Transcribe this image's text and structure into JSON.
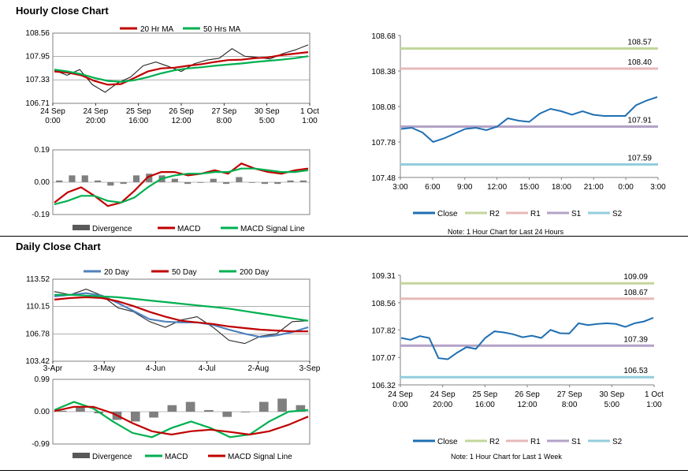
{
  "hourly": {
    "title": "Hourly Close Chart",
    "price": {
      "type": "line",
      "ylim": [
        106.71,
        108.56
      ],
      "yticks": [
        "108.56",
        "107.95",
        "107.33",
        "106.71"
      ],
      "ytick_vals": [
        108.56,
        107.95,
        107.33,
        106.71
      ],
      "xticks": [
        [
          "24 Sep",
          "0:00"
        ],
        [
          "24 Sep",
          "20:00"
        ],
        [
          "25 Sep",
          "16:00"
        ],
        [
          "26 Sep",
          "12:00"
        ],
        [
          "27 Sep",
          "8:00"
        ],
        [
          "30 Sep",
          "5:00"
        ],
        [
          "1 Oct",
          "1:00"
        ]
      ],
      "legend": [
        {
          "name": "20 Hr MA",
          "color": "#c00000"
        },
        {
          "name": "50 Hrs MA",
          "color": "#00b050"
        }
      ],
      "ma20": [
        107.55,
        107.52,
        107.45,
        107.3,
        107.2,
        107.22,
        107.38,
        107.55,
        107.63,
        107.65,
        107.7,
        107.74,
        107.8,
        107.85,
        107.86,
        107.9,
        107.92,
        107.98,
        108.02,
        108.06
      ],
      "ma50": [
        107.6,
        107.55,
        107.48,
        107.38,
        107.3,
        107.28,
        107.32,
        107.4,
        107.5,
        107.58,
        107.63,
        107.66,
        107.7,
        107.73,
        107.76,
        107.8,
        107.83,
        107.86,
        107.9,
        107.95
      ],
      "close": [
        107.58,
        107.45,
        107.6,
        107.2,
        107.0,
        107.25,
        107.4,
        107.7,
        107.8,
        107.68,
        107.55,
        107.75,
        107.85,
        107.9,
        108.15,
        107.95,
        107.92,
        107.88,
        108.02,
        108.12,
        108.25
      ]
    },
    "macd": {
      "ylim": [
        -0.19,
        0.19
      ],
      "yticks": [
        "0.19",
        "0.00",
        "-0.19"
      ],
      "ytick_vals": [
        0.19,
        0.0,
        -0.19
      ],
      "legend": [
        {
          "name": "Divergence",
          "color": "#595959"
        },
        {
          "name": "MACD",
          "color": "#c00000"
        },
        {
          "name": "MACD Signal Line",
          "color": "#00b050"
        }
      ],
      "macd": [
        -0.12,
        -0.06,
        -0.03,
        -0.08,
        -0.14,
        -0.12,
        -0.05,
        0.03,
        0.06,
        0.06,
        0.04,
        0.05,
        0.07,
        0.05,
        0.11,
        0.08,
        0.06,
        0.05,
        0.07,
        0.08
      ],
      "signal": [
        -0.13,
        -0.11,
        -0.08,
        -0.08,
        -0.11,
        -0.12,
        -0.09,
        -0.03,
        0.02,
        0.04,
        0.05,
        0.05,
        0.06,
        0.06,
        0.08,
        0.08,
        0.07,
        0.06,
        0.06,
        0.07
      ],
      "divergence": [
        0.01,
        0.04,
        0.04,
        0.01,
        -0.02,
        -0.01,
        0.04,
        0.05,
        0.04,
        0.02,
        -0.01,
        0.0,
        0.02,
        -0.01,
        0.03,
        0.0,
        -0.01,
        -0.01,
        0.01,
        0.01
      ]
    },
    "pivot": {
      "ylim": [
        107.48,
        108.68
      ],
      "yticks": [
        "108.68",
        "108.38",
        "108.08",
        "107.78",
        "107.48"
      ],
      "ytick_vals": [
        108.68,
        108.38,
        108.08,
        107.78,
        107.48
      ],
      "xticks": [
        "3:00",
        "6:00",
        "9:00",
        "12:00",
        "15:00",
        "18:00",
        "21:00",
        "0:00",
        "3:00"
      ],
      "close": [
        107.89,
        107.9,
        107.86,
        107.78,
        107.81,
        107.85,
        107.89,
        107.9,
        107.88,
        107.91,
        107.98,
        107.96,
        107.95,
        108.02,
        108.06,
        108.04,
        108.01,
        108.04,
        108.01,
        108.0,
        108.0,
        108.0,
        108.09,
        108.13,
        108.16
      ],
      "levels": [
        {
          "name": "R2",
          "value": 108.57,
          "label": "108.57",
          "color": "#c3d69b"
        },
        {
          "name": "R1",
          "value": 108.4,
          "label": "108.40",
          "color": "#e6b9b8"
        },
        {
          "name": "S1",
          "value": 107.91,
          "label": "107.91",
          "color": "#b3a2c7"
        },
        {
          "name": "S2",
          "value": 107.59,
          "label": "107.59",
          "color": "#93cddd"
        }
      ],
      "legend_close": "Close",
      "close_color": "#1f6fb2",
      "note": "Note: 1 Hour Chart for Last 24 Hours"
    }
  },
  "daily": {
    "title": "Daily Close Chart",
    "price": {
      "type": "line",
      "ylim": [
        103.42,
        113.52
      ],
      "yticks": [
        "113.52",
        "110.15",
        "106.78",
        "103.42"
      ],
      "ytick_vals": [
        113.52,
        110.15,
        106.78,
        103.42
      ],
      "xticks": [
        "3-Apr",
        "3-May",
        "4-Jun",
        "4-Jul",
        "2-Aug",
        "3-Sep"
      ],
      "legend": [
        {
          "name": "20 Day",
          "color": "#4f81bd"
        },
        {
          "name": "50 Day",
          "color": "#c00000"
        },
        {
          "name": "200 Day",
          "color": "#00b050"
        }
      ],
      "ma20": [
        111.4,
        111.6,
        111.8,
        111.5,
        110.6,
        109.6,
        108.6,
        108.3,
        108.2,
        108.2,
        107.9,
        107.3,
        106.8,
        106.4,
        106.6,
        107.0,
        107.6
      ],
      "ma50": [
        111.0,
        111.2,
        111.3,
        111.2,
        110.8,
        110.2,
        109.5,
        108.9,
        108.4,
        108.2,
        108.0,
        107.7,
        107.5,
        107.3,
        107.2,
        107.1,
        107.1
      ],
      "ma200": [
        111.6,
        111.6,
        111.5,
        111.4,
        111.3,
        111.1,
        110.9,
        110.7,
        110.5,
        110.3,
        110.1,
        109.9,
        109.6,
        109.3,
        109.0,
        108.7,
        108.4
      ],
      "close": [
        112.0,
        111.6,
        112.3,
        111.5,
        110.0,
        109.5,
        108.3,
        107.6,
        108.5,
        108.9,
        107.6,
        106.0,
        105.6,
        106.5,
        106.8,
        108.3,
        108.4
      ]
    },
    "macd": {
      "ylim": [
        -0.99,
        0.99
      ],
      "yticks": [
        "0.99",
        "0.00",
        "-0.99"
      ],
      "ytick_vals": [
        0.99,
        0.0,
        -0.99
      ],
      "legend": [
        {
          "name": "Divergence",
          "color": "#595959"
        },
        {
          "name": "MACD",
          "color": "#00b050"
        },
        {
          "name": "MACD Signal Line",
          "color": "#c00000"
        }
      ],
      "macd": [
        0.05,
        0.3,
        0.1,
        -0.3,
        -0.65,
        -0.78,
        -0.5,
        -0.3,
        -0.5,
        -0.78,
        -0.7,
        -0.3,
        0.0,
        0.05
      ],
      "signal": [
        0.02,
        0.15,
        0.15,
        -0.05,
        -0.35,
        -0.6,
        -0.7,
        -0.6,
        -0.55,
        -0.62,
        -0.7,
        -0.6,
        -0.4,
        -0.15
      ],
      "divergence": [
        0.03,
        0.15,
        -0.05,
        -0.25,
        -0.3,
        -0.18,
        0.2,
        0.3,
        0.05,
        -0.16,
        0.0,
        0.3,
        0.4,
        0.2
      ]
    },
    "pivot": {
      "ylim": [
        106.32,
        109.31
      ],
      "yticks": [
        "109.31",
        "108.56",
        "107.82",
        "107.07",
        "106.32"
      ],
      "ytick_vals": [
        109.31,
        108.56,
        107.82,
        107.07,
        106.32
      ],
      "xticks": [
        [
          "24 Sep",
          "0:00"
        ],
        [
          "24 Sep",
          "20:00"
        ],
        [
          "25 Sep",
          "16:00"
        ],
        [
          "26 Sep",
          "12:00"
        ],
        [
          "27 Sep",
          "8:00"
        ],
        [
          "30 Sep",
          "5:00"
        ],
        [
          "1 Oct",
          "1:00"
        ]
      ],
      "close": [
        107.6,
        107.55,
        107.65,
        107.6,
        107.05,
        107.02,
        107.2,
        107.35,
        107.3,
        107.6,
        107.78,
        107.75,
        107.7,
        107.62,
        107.66,
        107.6,
        107.82,
        107.73,
        107.72,
        108.0,
        107.95,
        107.98,
        108.0,
        107.98,
        107.9,
        108.0,
        108.05,
        108.15
      ],
      "levels": [
        {
          "name": "R2",
          "value": 109.09,
          "label": "109.09",
          "color": "#c3d69b"
        },
        {
          "name": "R1",
          "value": 108.67,
          "label": "108.67",
          "color": "#e6b9b8"
        },
        {
          "name": "S1",
          "value": 107.39,
          "label": "107.39",
          "color": "#b3a2c7"
        },
        {
          "name": "S2",
          "value": 106.53,
          "label": "106.53",
          "color": "#93cddd"
        }
      ],
      "legend_close": "Close",
      "close_color": "#1f6fb2",
      "note": "Note: 1 Hour Chart for Last 1 Week"
    }
  }
}
